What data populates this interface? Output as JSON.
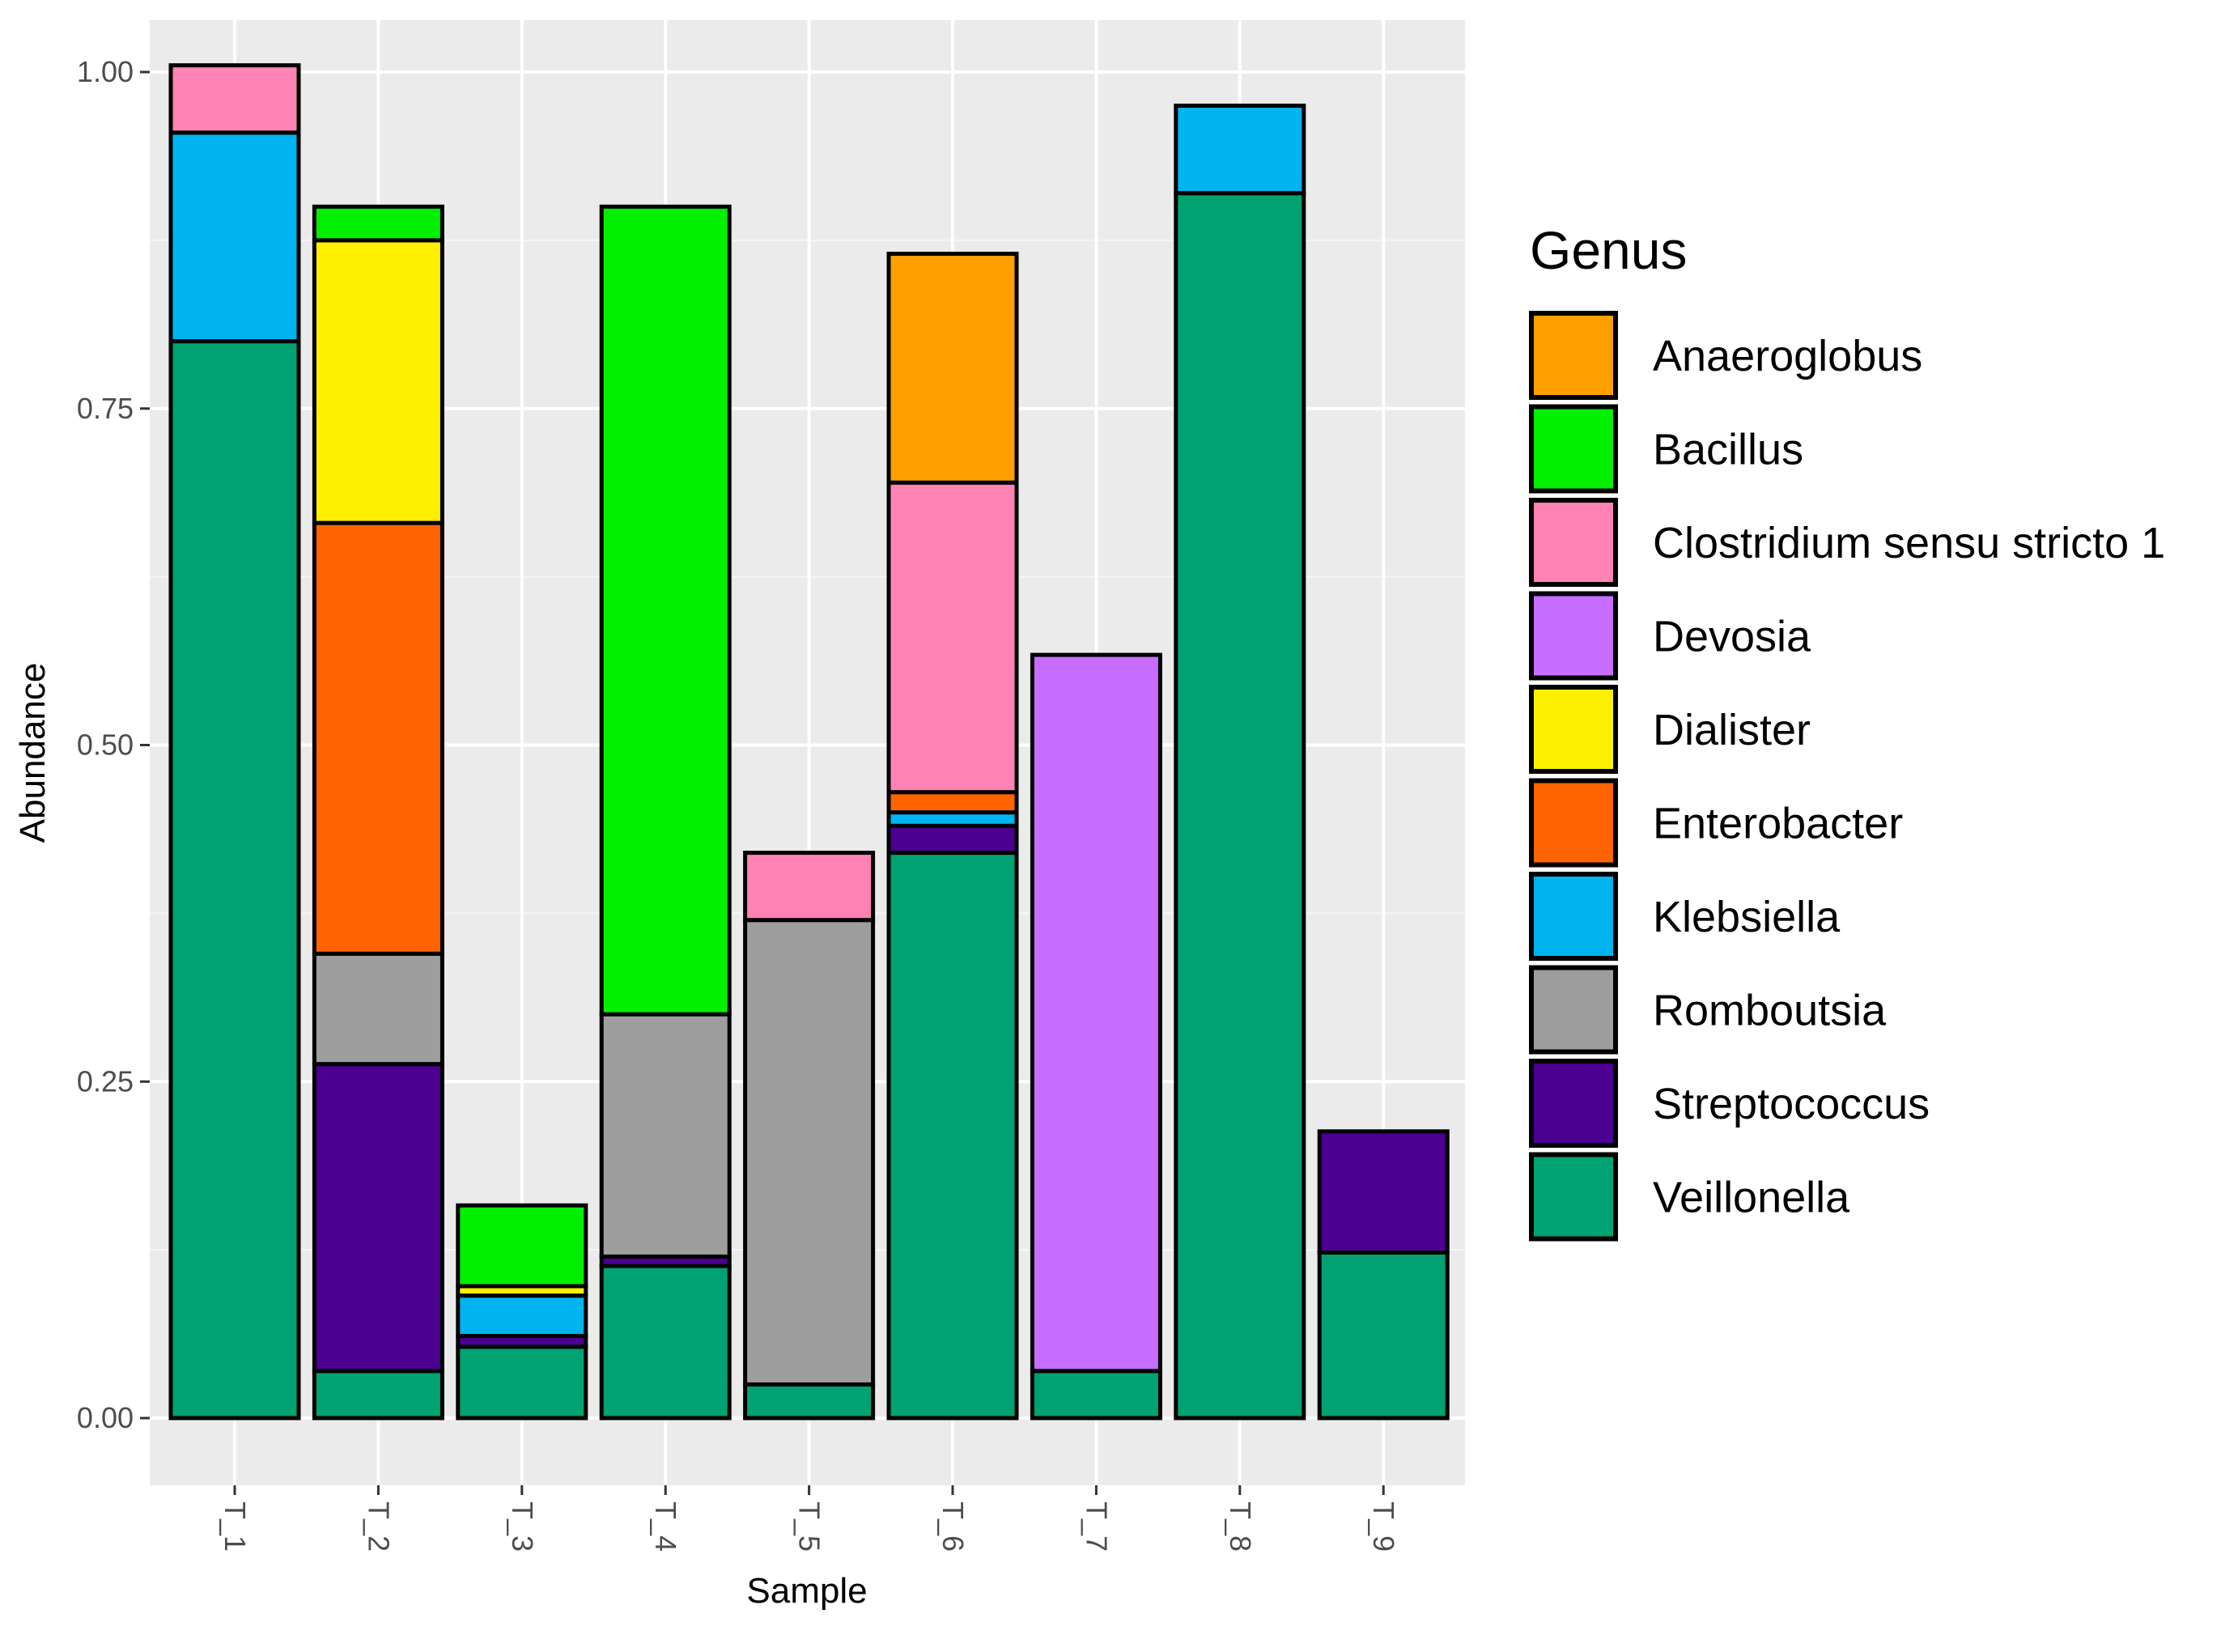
{
  "chart_data": {
    "type": "bar",
    "stacked": true,
    "xlabel": "Sample",
    "ylabel": "Abundance",
    "ylim": [
      0,
      1.05
    ],
    "yticks": [
      0,
      0.25,
      0.5,
      0.75,
      1.0
    ],
    "ytick_labels": [
      "0.00",
      "0.25",
      "0.50",
      "0.75",
      "1.00"
    ],
    "categories": [
      "T_1",
      "T_2",
      "T_3",
      "T_4",
      "T_5",
      "T_6",
      "T_7",
      "T_8",
      "T_9"
    ],
    "legend": {
      "title": "Genus",
      "placement": "right"
    },
    "series": [
      {
        "name": "Veillonella",
        "color": "#00A271",
        "values": [
          0.8,
          0.035,
          0.053,
          0.113,
          0.025,
          0.42,
          0.035,
          0.91,
          0.123
        ]
      },
      {
        "name": "Streptococcus",
        "color": "#4B0092",
        "values": [
          0,
          0.228,
          0.008,
          0.007,
          0,
          0.02,
          0,
          0,
          0.09
        ]
      },
      {
        "name": "Romboutsia",
        "color": "#9E9E9E",
        "values": [
          0,
          0.082,
          0,
          0.18,
          0.345,
          0,
          0,
          0,
          0
        ]
      },
      {
        "name": "Klebsiella",
        "color": "#00B4F0",
        "values": [
          0.155,
          0,
          0.03,
          0,
          0,
          0.01,
          0,
          0.065,
          0
        ]
      },
      {
        "name": "Enterobacter",
        "color": "#FF6400",
        "values": [
          0,
          0.32,
          0,
          0,
          0,
          0.015,
          0,
          0,
          0
        ]
      },
      {
        "name": "Dialister",
        "color": "#FFF000",
        "values": [
          0,
          0.21,
          0.007,
          0,
          0,
          0,
          0,
          0,
          0
        ]
      },
      {
        "name": "Devosia",
        "color": "#C86EFF",
        "values": [
          0,
          0,
          0,
          0,
          0,
          0,
          0.532,
          0,
          0
        ]
      },
      {
        "name": "Clostridium sensu stricto 1",
        "color": "#FF82B4",
        "values": [
          0.05,
          0,
          0,
          0,
          0.05,
          0.23,
          0,
          0,
          0
        ]
      },
      {
        "name": "Bacillus",
        "color": "#00F000",
        "values": [
          0,
          0.025,
          0.06,
          0.6,
          0,
          0,
          0,
          0,
          0
        ]
      },
      {
        "name": "Anaeroglobus",
        "color": "#FFA000",
        "values": [
          0,
          0,
          0,
          0,
          0,
          0.17,
          0,
          0,
          0
        ]
      }
    ],
    "legend_order": [
      "Anaeroglobus",
      "Bacillus",
      "Clostridium sensu stricto 1",
      "Devosia",
      "Dialister",
      "Enterobacter",
      "Klebsiella",
      "Romboutsia",
      "Streptococcus",
      "Veillonella"
    ],
    "panel_background": "#EBEBEB",
    "grid": true
  }
}
